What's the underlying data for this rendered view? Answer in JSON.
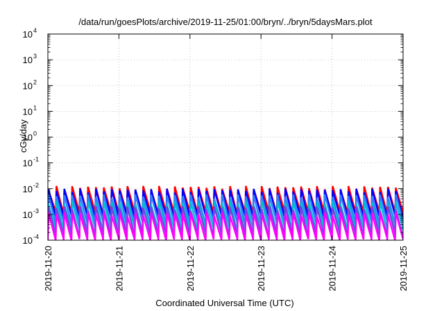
{
  "chart_data": {
    "type": "line",
    "title": "/data/run/goesPlots/archive/2019-11-25/01:00/bryn/../bryn/5daysMars.plot",
    "xlabel": "Coordinated Universal Time (UTC)",
    "ylabel": "cGy/day",
    "yscale": "log",
    "ylim": [
      0.0001,
      10000
    ],
    "xlim": [
      "2019-11-20",
      "2019-11-25"
    ],
    "grid": true,
    "x_ticks": [
      "2019-11-20",
      "2019-11-21",
      "2019-11-22",
      "2019-11-23",
      "2019-11-24",
      "2019-11-25"
    ],
    "y_ticks": [
      {
        "base": "10",
        "exp": "-4"
      },
      {
        "base": "10",
        "exp": "-3"
      },
      {
        "base": "10",
        "exp": "-2"
      },
      {
        "base": "10",
        "exp": "-1"
      },
      {
        "base": "10",
        "exp": "0"
      },
      {
        "base": "10",
        "exp": "1"
      },
      {
        "base": "10",
        "exp": "2"
      },
      {
        "base": "10",
        "exp": "3"
      },
      {
        "base": "10",
        "exp": "4"
      }
    ],
    "y_tick_values": [
      0.0001,
      0.001,
      0.01,
      0.1,
      1,
      10,
      100,
      1000,
      10000
    ],
    "series_pattern": {
      "cycles_per_day": 9,
      "note_values": "sawtooth doses per cycle peak then decay",
      "series": [
        {
          "color": "#ff0000",
          "peak": 0.0105,
          "trough": 0.0011
        },
        {
          "color": "#0000ff",
          "peak": 0.0082,
          "trough": 0.0008
        },
        {
          "color": "#2d7fff",
          "peak": 0.005,
          "trough": 0.00045
        },
        {
          "color": "#00bcd4",
          "peak": 0.0028,
          "trough": 0.00025
        },
        {
          "color": "#7b3fe4",
          "peak": 0.0017,
          "trough": 0.00015
        },
        {
          "color": "#ff00ff",
          "peak": 0.001,
          "trough": 0.0001
        }
      ]
    }
  }
}
